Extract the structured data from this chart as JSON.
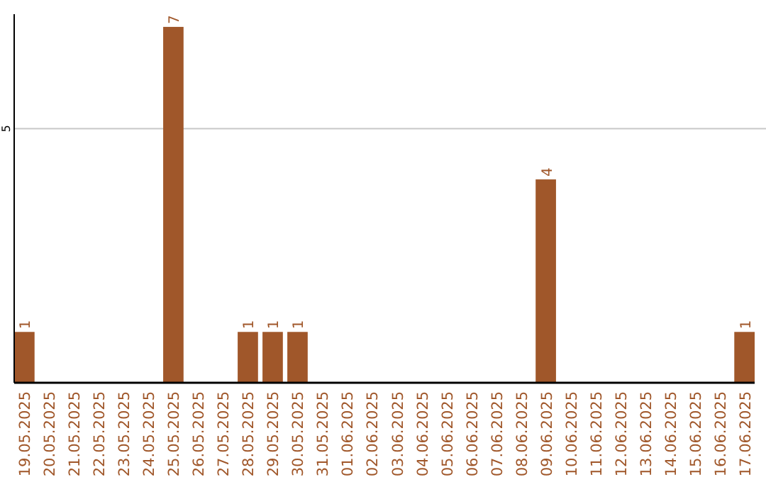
{
  "chart_data": {
    "type": "bar",
    "categories": [
      "19.05.2025",
      "20.05.2025",
      "21.05.2025",
      "22.05.2025",
      "23.05.2025",
      "24.05.2025",
      "25.05.2025",
      "26.05.2025",
      "27.05.2025",
      "28.05.2025",
      "29.05.2025",
      "30.05.2025",
      "31.05.2025",
      "01.06.2025",
      "02.06.2025",
      "03.06.2025",
      "04.06.2025",
      "05.06.2025",
      "06.06.2025",
      "07.06.2025",
      "08.06.2025",
      "09.06.2025",
      "10.06.2025",
      "11.06.2025",
      "12.06.2025",
      "13.06.2025",
      "14.06.2025",
      "15.06.2025",
      "16.06.2025",
      "17.06.2025"
    ],
    "values": [
      1,
      0,
      0,
      0,
      0,
      0,
      7,
      0,
      0,
      1,
      1,
      1,
      0,
      0,
      0,
      0,
      0,
      0,
      0,
      0,
      0,
      4,
      0,
      0,
      0,
      0,
      0,
      0,
      0,
      1
    ],
    "value_labels": [
      "1",
      null,
      null,
      null,
      null,
      null,
      "7",
      null,
      null,
      "1",
      "1",
      "1",
      null,
      null,
      null,
      null,
      null,
      null,
      null,
      null,
      null,
      "4",
      null,
      null,
      null,
      null,
      null,
      null,
      null,
      "1"
    ],
    "color": "#a0572a",
    "ylim": [
      0,
      7.25
    ],
    "yticks": [
      5
    ],
    "grid": "y"
  }
}
